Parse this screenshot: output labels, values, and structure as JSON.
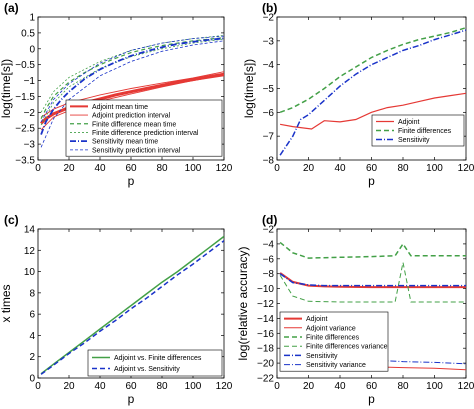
{
  "chart_data": [
    {
      "panel": "(a)",
      "type": "line",
      "xlabel": "p",
      "ylabel": "log(time[s])",
      "xlim": [
        0,
        120
      ],
      "ylim": [
        -3.5,
        1
      ],
      "xticks": [
        0,
        20,
        40,
        60,
        80,
        100,
        120
      ],
      "yticks": [
        -3.5,
        -3,
        -2.5,
        -2,
        -1.5,
        -1,
        -0.5,
        0,
        0.5,
        1
      ],
      "grid": false,
      "legend_position": "bottom-right",
      "series": [
        {
          "name": "Adjoint mean time",
          "color": "#e53935",
          "dash": "solid",
          "width": 3,
          "x": [
            2,
            5,
            10,
            15,
            20,
            30,
            40,
            50,
            60,
            70,
            80,
            90,
            100,
            110,
            120
          ],
          "y": [
            -2.35,
            -2.2,
            -2.05,
            -1.95,
            -1.85,
            -1.7,
            -1.58,
            -1.45,
            -1.35,
            -1.25,
            -1.15,
            -1.05,
            -0.97,
            -0.88,
            -0.8
          ]
        },
        {
          "name": "Adjoint prediction interval",
          "color": "#e53935",
          "dash": "solid",
          "width": 0.9,
          "band": true,
          "x": [
            2,
            10,
            20,
            40,
            60,
            80,
            100,
            120
          ],
          "y": [
            -2.55,
            -2.15,
            -1.95,
            -1.65,
            -1.42,
            -1.2,
            -1.0,
            -0.85
          ],
          "y2": [
            -2.15,
            -1.9,
            -1.7,
            -1.45,
            -1.25,
            -1.08,
            -0.92,
            -0.72
          ]
        },
        {
          "name": "Finite difference mean time",
          "color": "#43a047",
          "dash": "4,3",
          "width": 1.2,
          "x": [
            2,
            5,
            10,
            20,
            30,
            40,
            50,
            60,
            70,
            80,
            90,
            100,
            110,
            120
          ],
          "y": [
            -2.2,
            -1.9,
            -1.5,
            -1.05,
            -0.75,
            -0.5,
            -0.3,
            -0.12,
            0,
            0.1,
            0.18,
            0.25,
            0.3,
            0.35
          ]
        },
        {
          "name": "Finite difference prediction interval",
          "color": "#43a047",
          "dash": "2,2",
          "width": 0.8,
          "band": true,
          "x": [
            2,
            10,
            20,
            40,
            60,
            80,
            100,
            120
          ],
          "y": [
            -2.4,
            -1.7,
            -1.2,
            -0.62,
            -0.25,
            0,
            0.18,
            0.3
          ],
          "y2": [
            -2.0,
            -1.35,
            -0.9,
            -0.4,
            -0.05,
            0.18,
            0.32,
            0.42
          ]
        },
        {
          "name": "Sensitivity mean time",
          "color": "#1a33c9",
          "dash": "6,2,1,2",
          "width": 1.8,
          "x": [
            2,
            5,
            10,
            15,
            20,
            30,
            40,
            50,
            60,
            70,
            80,
            90,
            100,
            110,
            120
          ],
          "y": [
            -2.7,
            -2.3,
            -1.9,
            -1.6,
            -1.35,
            -0.95,
            -0.65,
            -0.42,
            -0.22,
            -0.08,
            0.05,
            0.15,
            0.22,
            0.28,
            0.33
          ]
        },
        {
          "name": "Sensitivity prediction interval",
          "color": "#1a33c9",
          "dash": "3,2",
          "width": 0.8,
          "band": true,
          "x": [
            2,
            10,
            20,
            40,
            60,
            80,
            100,
            120
          ],
          "y": [
            -3.1,
            -2.2,
            -1.6,
            -0.85,
            -0.4,
            -0.08,
            0.12,
            0.25
          ],
          "y2": [
            -2.3,
            -1.6,
            -1.1,
            -0.45,
            -0.05,
            0.18,
            0.32,
            0.4
          ]
        }
      ]
    },
    {
      "panel": "(b)",
      "type": "line",
      "xlabel": "p",
      "ylabel": "log(time[s])",
      "xlim": [
        0,
        120
      ],
      "ylim": [
        -8,
        -2
      ],
      "xticks": [
        0,
        20,
        40,
        60,
        80,
        100,
        120
      ],
      "yticks": [
        -8,
        -7,
        -6,
        -5,
        -4,
        -3,
        -2
      ],
      "grid": false,
      "legend_position": "bottom-right",
      "series": [
        {
          "name": "Adjoint",
          "color": "#e53935",
          "dash": "solid",
          "width": 1.2,
          "x": [
            2,
            10,
            22,
            30,
            40,
            50,
            60,
            70,
            80,
            90,
            100,
            110,
            120
          ],
          "y": [
            -6.5,
            -6.6,
            -6.7,
            -6.35,
            -6.4,
            -6.3,
            -6.0,
            -5.8,
            -5.7,
            -5.55,
            -5.4,
            -5.3,
            -5.2
          ]
        },
        {
          "name": "Finite differences",
          "color": "#43a047",
          "dash": "5,3",
          "width": 1.5,
          "x": [
            2,
            10,
            20,
            30,
            40,
            50,
            60,
            70,
            80,
            90,
            100,
            110,
            120
          ],
          "y": [
            -6.0,
            -5.8,
            -5.45,
            -5.0,
            -4.5,
            -4.1,
            -3.7,
            -3.4,
            -3.15,
            -2.95,
            -2.8,
            -2.65,
            -2.45
          ]
        },
        {
          "name": "Sensitivity",
          "color": "#1a33c9",
          "dash": "6,2,1,2",
          "width": 1.5,
          "x": [
            2,
            10,
            15,
            20,
            30,
            40,
            50,
            60,
            70,
            80,
            90,
            100,
            110,
            120
          ],
          "y": [
            -7.8,
            -7.0,
            -6.3,
            -6.1,
            -5.5,
            -4.9,
            -4.4,
            -4.0,
            -3.7,
            -3.4,
            -3.2,
            -2.95,
            -2.75,
            -2.55
          ]
        }
      ]
    },
    {
      "panel": "(c)",
      "type": "line",
      "xlabel": "p",
      "ylabel": "x times",
      "xlim": [
        0,
        120
      ],
      "ylim": [
        0,
        14
      ],
      "xticks": [
        0,
        20,
        40,
        60,
        80,
        100,
        120
      ],
      "yticks": [
        0,
        2,
        4,
        6,
        8,
        10,
        12,
        14
      ],
      "grid": false,
      "legend_position": "bottom-right",
      "series": [
        {
          "name": "Adjoint vs. Finite differences",
          "color": "#43a047",
          "dash": "solid",
          "width": 1.5,
          "x": [
            2,
            10,
            20,
            30,
            40,
            50,
            60,
            70,
            80,
            90,
            100,
            110,
            120
          ],
          "y": [
            0.4,
            1.3,
            2.4,
            3.5,
            4.6,
            5.7,
            6.8,
            7.9,
            9.0,
            10.0,
            11.1,
            12.2,
            13.3
          ]
        },
        {
          "name": "Adjoint vs. Sensitivity",
          "color": "#1a33c9",
          "dash": "5,3",
          "width": 1.5,
          "x": [
            2,
            10,
            20,
            30,
            40,
            50,
            60,
            70,
            80,
            90,
            100,
            110,
            120
          ],
          "y": [
            0.35,
            1.2,
            2.3,
            3.3,
            4.4,
            5.4,
            6.5,
            7.5,
            8.6,
            9.7,
            10.7,
            11.8,
            12.9
          ]
        }
      ]
    },
    {
      "panel": "(d)",
      "type": "line",
      "xlabel": "p",
      "ylabel": "log(relative accuracy)",
      "xlim": [
        0,
        120
      ],
      "ylim": [
        -22,
        -2
      ],
      "xticks": [
        0,
        20,
        40,
        60,
        80,
        100,
        120
      ],
      "yticks": [
        -22,
        -20,
        -18,
        -16,
        -14,
        -12,
        -10,
        -8,
        -6,
        -4,
        -2
      ],
      "grid": false,
      "legend_position": "bottom-left",
      "series": [
        {
          "name": "Adjoint",
          "color": "#e53935",
          "dash": "solid",
          "width": 2,
          "x": [
            2,
            10,
            20,
            30,
            40,
            60,
            80,
            100,
            120
          ],
          "y": [
            -7.9,
            -9.1,
            -9.6,
            -9.7,
            -9.75,
            -9.8,
            -9.8,
            -9.8,
            -9.8
          ]
        },
        {
          "name": "Adjoint variance",
          "color": "#e53935",
          "dash": "solid",
          "width": 1,
          "x": [
            2,
            10,
            20,
            30,
            40,
            50,
            60,
            80,
            100,
            120
          ],
          "y": [
            -15.6,
            -18.0,
            -19.8,
            -19.8,
            -20.0,
            -20.4,
            -20.5,
            -20.6,
            -20.7,
            -20.9
          ]
        },
        {
          "name": "Finite differences",
          "color": "#43a047",
          "dash": "5,3",
          "width": 1.5,
          "x": [
            2,
            10,
            20,
            40,
            60,
            75,
            80,
            85,
            100,
            120
          ],
          "y": [
            -3.8,
            -5.2,
            -5.9,
            -5.8,
            -5.7,
            -5.6,
            -4.0,
            -5.6,
            -5.6,
            -5.6
          ]
        },
        {
          "name": "Finite differences variance",
          "color": "#43a047",
          "dash": "5,3",
          "width": 1,
          "x": [
            2,
            10,
            20,
            40,
            60,
            75,
            80,
            85,
            100,
            120
          ],
          "y": [
            -8.2,
            -11.0,
            -11.7,
            -11.8,
            -11.8,
            -11.8,
            -6.5,
            -11.8,
            -11.8,
            -11.8
          ]
        },
        {
          "name": "Sensitivity",
          "color": "#1a33c9",
          "dash": "6,2,1,2",
          "width": 1.5,
          "x": [
            2,
            10,
            20,
            30,
            40,
            60,
            80,
            100,
            120
          ],
          "y": [
            -8.0,
            -9.2,
            -9.5,
            -9.6,
            -9.6,
            -9.6,
            -9.6,
            -9.6,
            -9.6
          ]
        },
        {
          "name": "Sensitivity variance",
          "color": "#1a33c9",
          "dash": "6,2,1,2",
          "width": 1,
          "x": [
            2,
            10,
            20,
            30,
            40,
            60,
            80,
            100,
            120
          ],
          "y": [
            -15.5,
            -17.6,
            -19.0,
            -19.2,
            -19.3,
            -19.6,
            -19.8,
            -19.9,
            -20.1
          ]
        }
      ]
    }
  ]
}
